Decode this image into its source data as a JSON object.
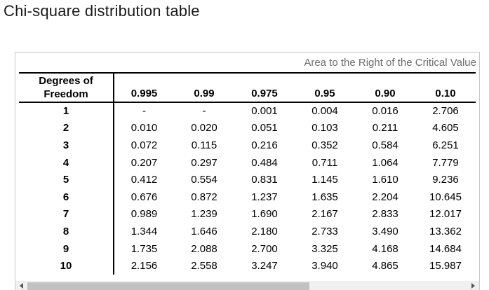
{
  "title": "Chi-square distribution table",
  "table": {
    "corner_label": "Area to the Right of the Critical Value",
    "df_header_lines": [
      "Degrees of",
      "Freedom"
    ],
    "columns": [
      "0.995",
      "0.99",
      "0.975",
      "0.95",
      "0.90",
      "0.10"
    ],
    "rows": [
      {
        "df": "1",
        "values": [
          "-",
          "-",
          "0.001",
          "0.004",
          "0.016",
          "2.706"
        ]
      },
      {
        "df": "2",
        "values": [
          "0.010",
          "0.020",
          "0.051",
          "0.103",
          "0.211",
          "4.605"
        ]
      },
      {
        "df": "3",
        "values": [
          "0.072",
          "0.115",
          "0.216",
          "0.352",
          "0.584",
          "6.251"
        ]
      },
      {
        "df": "4",
        "values": [
          "0.207",
          "0.297",
          "0.484",
          "0.711",
          "1.064",
          "7.779"
        ]
      },
      {
        "df": "5",
        "values": [
          "0.412",
          "0.554",
          "0.831",
          "1.145",
          "1.610",
          "9.236"
        ]
      },
      {
        "df": "6",
        "values": [
          "0.676",
          "0.872",
          "1.237",
          "1.635",
          "2.204",
          "10.645"
        ]
      },
      {
        "df": "7",
        "values": [
          "0.989",
          "1.239",
          "1.690",
          "2.167",
          "2.833",
          "12.017"
        ]
      },
      {
        "df": "8",
        "values": [
          "1.344",
          "1.646",
          "2.180",
          "2.733",
          "3.490",
          "13.362"
        ]
      },
      {
        "df": "9",
        "values": [
          "1.735",
          "2.088",
          "2.700",
          "3.325",
          "4.168",
          "14.684"
        ]
      },
      {
        "df": "10",
        "values": [
          "2.156",
          "2.558",
          "3.247",
          "3.940",
          "4.865",
          "15.987"
        ]
      }
    ]
  },
  "colors": {
    "title_text": "#1a1a1a",
    "corner_label_text": "#6d6d6d",
    "table_rule": "#000000",
    "panel_border": "#c8c8c8",
    "scroll_track": "#f0f0f0",
    "scroll_thumb": "#c2c2c2",
    "scroll_arrow": "#555555"
  }
}
